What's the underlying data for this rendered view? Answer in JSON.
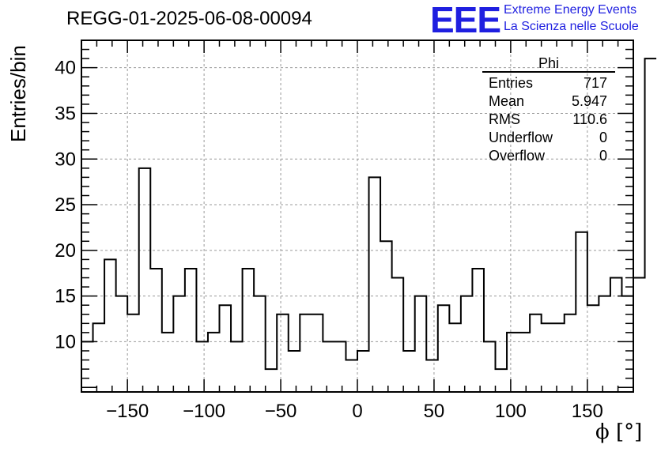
{
  "header": {
    "title": "REGG-01-2025-06-08-00094",
    "logo_text": "EEE",
    "logo_line1": "Extreme Energy Events",
    "logo_line2": "La Scienza nelle Scuole"
  },
  "stats": {
    "name": "Phi",
    "rows": [
      {
        "label": "Entries",
        "value": "717"
      },
      {
        "label": "Mean",
        "value": "5.947"
      },
      {
        "label": "RMS",
        "value": "110.6"
      },
      {
        "label": "Underflow",
        "value": "0"
      },
      {
        "label": "Overflow",
        "value": "0"
      }
    ]
  },
  "colors": {
    "logo": "#1f1fe0",
    "line": "#000000",
    "grid": "#999999"
  },
  "chart_data": {
    "type": "histogram",
    "title": "REGG-01-2025-06-08-00094",
    "xlabel": "ϕ [°]",
    "ylabel": "Entries/bin",
    "xlim": [
      -180,
      180
    ],
    "ylim": [
      4.5,
      43
    ],
    "grid": true,
    "x_ticks": [
      -150,
      -100,
      -50,
      0,
      50,
      100,
      150
    ],
    "x_tick_labels": [
      "−150",
      "−100",
      "−50",
      "0",
      "50",
      "100",
      "150"
    ],
    "y_ticks": [
      10,
      15,
      20,
      25,
      30,
      35,
      40
    ],
    "y_tick_labels": [
      "10",
      "15",
      "20",
      "25",
      "30",
      "35",
      "40"
    ],
    "bin_edges_start": -180,
    "bin_width": 7.5,
    "values": [
      10,
      12,
      19,
      15,
      13,
      29,
      18,
      11,
      15,
      18,
      10,
      11,
      14,
      10,
      18,
      15,
      7,
      13,
      9,
      13,
      13,
      10,
      10,
      8,
      9,
      28,
      21,
      17,
      9,
      15,
      8,
      14,
      12,
      15,
      18,
      10,
      7,
      11,
      11,
      13,
      12,
      12,
      13,
      22,
      14,
      15,
      17,
      15,
      17,
      41
    ]
  }
}
